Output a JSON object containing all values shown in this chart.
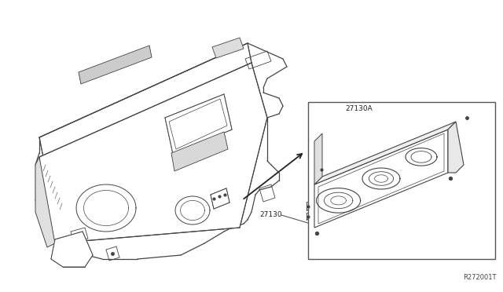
{
  "bg_color": "#ffffff",
  "line_color": "#444444",
  "label_27130": "27130",
  "label_27130A": "27130A",
  "ref_code": "R272001T",
  "fig_width": 6.4,
  "fig_height": 3.72,
  "dpi": 100
}
